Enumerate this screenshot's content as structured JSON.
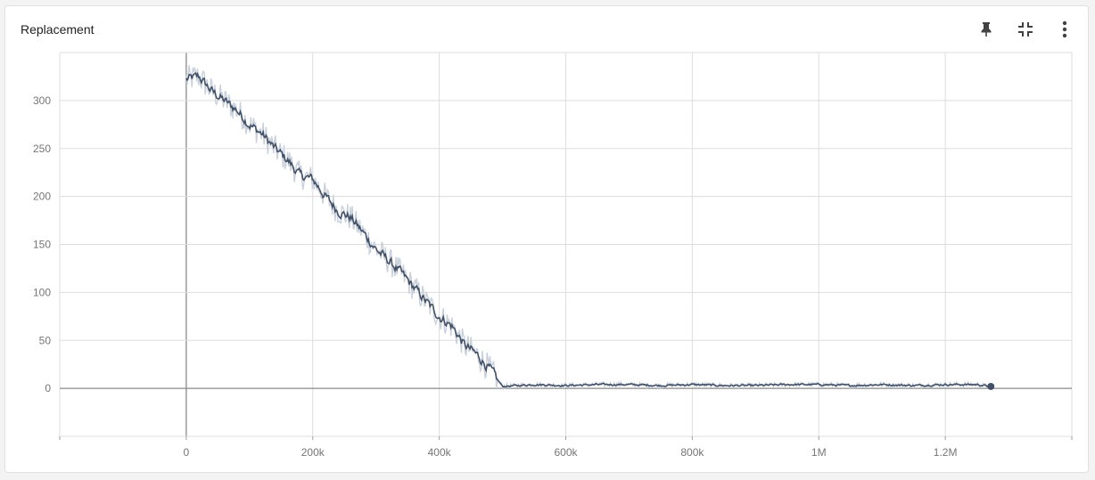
{
  "card": {
    "title": "Replacement",
    "actions": [
      {
        "name": "pin-button",
        "icon": "pin-icon"
      },
      {
        "name": "collapse-button",
        "icon": "fullscreen-exit-icon"
      },
      {
        "name": "more-options-button",
        "icon": "more-vert-icon"
      }
    ]
  },
  "colors": {
    "line": "#425066",
    "raw_line": "#c9d1dd",
    "grid": "#dddddd",
    "axis": "#8a8a8a"
  },
  "chart_data": {
    "type": "line",
    "title": "Replacement",
    "xlabel": "",
    "ylabel": "",
    "xlim": [
      -200000,
      1400000
    ],
    "ylim": [
      -50,
      350
    ],
    "x_ticks": [
      0,
      200000,
      400000,
      600000,
      800000,
      1000000,
      1200000
    ],
    "x_tick_labels": [
      "0",
      "200k",
      "400k",
      "600k",
      "800k",
      "1M",
      "1.2M"
    ],
    "y_ticks": [
      0,
      50,
      100,
      150,
      200,
      250,
      300
    ],
    "y_tick_labels": [
      "0",
      "50",
      "100",
      "150",
      "200",
      "250",
      "300"
    ],
    "grid": true,
    "series": [
      {
        "x": [
          0,
          20000,
          40000,
          60000,
          80000,
          100000,
          120000,
          140000,
          160000,
          180000,
          200000,
          220000,
          240000,
          260000,
          280000,
          300000,
          320000,
          340000,
          360000,
          380000,
          400000,
          420000,
          440000,
          460000,
          480000,
          500000,
          550000,
          600000,
          650000,
          700000,
          750000,
          800000,
          850000,
          900000,
          950000,
          1000000,
          1050000,
          1100000,
          1150000,
          1200000,
          1250000,
          1272000
        ],
        "y": [
          322,
          325,
          310,
          300,
          290,
          275,
          265,
          250,
          238,
          222,
          218,
          200,
          185,
          178,
          162,
          145,
          133,
          120,
          105,
          90,
          75,
          65,
          45,
          35,
          20,
          2,
          4,
          3,
          4,
          4,
          3,
          4,
          3,
          3,
          4,
          4,
          3,
          4,
          3,
          4,
          4,
          2
        ]
      }
    ]
  }
}
